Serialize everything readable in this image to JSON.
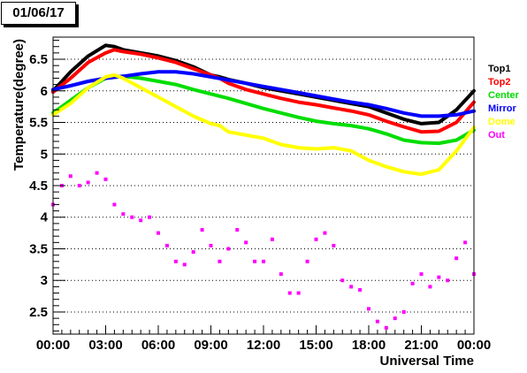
{
  "page": {
    "background": "#ffffff"
  },
  "title": "01/06/17",
  "chart_data": {
    "type": "scatter",
    "title": "01/06/17",
    "xlabel": "Universal Time",
    "ylabel": "Temperature(degree)",
    "xlim": [
      0,
      24
    ],
    "ylim": [
      2.15,
      6.85
    ],
    "grid": true,
    "legend_position": "right",
    "x_ticks": [
      {
        "value": 0,
        "label": "00:00"
      },
      {
        "value": 3,
        "label": "03:00"
      },
      {
        "value": 6,
        "label": "06:00"
      },
      {
        "value": 9,
        "label": "09:00"
      },
      {
        "value": 12,
        "label": "12:00"
      },
      {
        "value": 15,
        "label": "15:00"
      },
      {
        "value": 18,
        "label": "18:00"
      },
      {
        "value": 21,
        "label": "21:00"
      },
      {
        "value": 24,
        "label": "00:00"
      }
    ],
    "y_ticks": [
      {
        "value": 2.5,
        "label": "2.5"
      },
      {
        "value": 3,
        "label": "3"
      },
      {
        "value": 3.5,
        "label": "3.5"
      },
      {
        "value": 4,
        "label": "4"
      },
      {
        "value": 4.5,
        "label": "4.5"
      },
      {
        "value": 5,
        "label": "5"
      },
      {
        "value": 5.5,
        "label": "5.5"
      },
      {
        "value": 6,
        "label": "6"
      },
      {
        "value": 6.5,
        "label": "6.5"
      }
    ],
    "series": [
      {
        "name": "Top1",
        "color": "#000000",
        "x": [
          0,
          1,
          2,
          3,
          3.5,
          4,
          5,
          6,
          7,
          8,
          9,
          9.5,
          10,
          11,
          12,
          13,
          14,
          15,
          16,
          17,
          18,
          19,
          20,
          21,
          22,
          23,
          24
        ],
        "y": [
          6.0,
          6.3,
          6.55,
          6.72,
          6.7,
          6.65,
          6.6,
          6.55,
          6.48,
          6.38,
          6.25,
          6.22,
          6.18,
          6.12,
          6.05,
          6.0,
          5.95,
          5.9,
          5.85,
          5.8,
          5.75,
          5.65,
          5.55,
          5.48,
          5.5,
          5.7,
          6.0
        ]
      },
      {
        "name": "Top2",
        "color": "#ff0000",
        "x": [
          0,
          1,
          2,
          3,
          3.5,
          4,
          5,
          6,
          7,
          8,
          9,
          9.5,
          10,
          11,
          12,
          13,
          14,
          15,
          16,
          17,
          18,
          19,
          20,
          21,
          22,
          23,
          24
        ],
        "y": [
          5.98,
          6.2,
          6.45,
          6.6,
          6.65,
          6.62,
          6.58,
          6.52,
          6.45,
          6.35,
          6.25,
          6.2,
          6.12,
          6.02,
          5.95,
          5.88,
          5.82,
          5.78,
          5.73,
          5.68,
          5.62,
          5.52,
          5.43,
          5.35,
          5.36,
          5.5,
          5.82
        ]
      },
      {
        "name": "Center",
        "color": "#00dd00",
        "x": [
          0,
          1,
          2,
          3,
          4,
          5,
          6,
          7,
          8,
          9,
          10,
          11,
          12,
          13,
          14,
          15,
          16,
          17,
          18,
          19,
          20,
          21,
          22,
          23,
          24
        ],
        "y": [
          5.65,
          5.85,
          6.05,
          6.2,
          6.23,
          6.2,
          6.15,
          6.1,
          6.02,
          5.95,
          5.88,
          5.8,
          5.72,
          5.65,
          5.58,
          5.52,
          5.48,
          5.45,
          5.4,
          5.32,
          5.22,
          5.18,
          5.17,
          5.22,
          5.38
        ]
      },
      {
        "name": "Mirror",
        "color": "#0000ff",
        "x": [
          0,
          1,
          2,
          3,
          4,
          5,
          6,
          7,
          8,
          9,
          10,
          11,
          12,
          13,
          14,
          15,
          16,
          17,
          18,
          19,
          20,
          21,
          22,
          23,
          24
        ],
        "y": [
          6.02,
          6.08,
          6.15,
          6.2,
          6.23,
          6.27,
          6.3,
          6.3,
          6.27,
          6.22,
          6.17,
          6.12,
          6.07,
          6.02,
          5.97,
          5.92,
          5.87,
          5.82,
          5.78,
          5.72,
          5.65,
          5.6,
          5.6,
          5.62,
          5.68
        ]
      },
      {
        "name": "Dome",
        "color": "#ffff00",
        "x": [
          0,
          1,
          2,
          3,
          3.5,
          4,
          5,
          6,
          7,
          8,
          9,
          9.5,
          10,
          11,
          12,
          13,
          14,
          15,
          16,
          17,
          18,
          19,
          20,
          21,
          22,
          23,
          24
        ],
        "y": [
          5.62,
          5.8,
          6.05,
          6.22,
          6.25,
          6.2,
          6.05,
          5.9,
          5.75,
          5.6,
          5.48,
          5.45,
          5.35,
          5.3,
          5.25,
          5.15,
          5.1,
          5.08,
          5.1,
          5.05,
          4.9,
          4.8,
          4.72,
          4.68,
          4.75,
          5.05,
          5.42
        ]
      },
      {
        "name": "Out",
        "color": "#ff00ff",
        "x": [
          0,
          0.5,
          1,
          1.5,
          2,
          2.5,
          3,
          3.5,
          4,
          4.5,
          5,
          5.5,
          6,
          6.5,
          7,
          7.5,
          8,
          8.5,
          9,
          9.5,
          10,
          10.5,
          11,
          11.5,
          12,
          12.5,
          13,
          13.5,
          14,
          14.5,
          15,
          15.5,
          16,
          16.5,
          17,
          17.5,
          18,
          18.5,
          19,
          19.5,
          20,
          20.5,
          21,
          21.5,
          22,
          22.5,
          23,
          23.5,
          24
        ],
        "y": [
          4.2,
          4.5,
          4.65,
          4.5,
          4.55,
          4.7,
          4.6,
          4.2,
          4.05,
          4.0,
          3.95,
          4.0,
          3.75,
          3.55,
          3.3,
          3.25,
          3.45,
          3.8,
          3.55,
          3.3,
          3.5,
          3.8,
          3.6,
          3.3,
          3.3,
          3.65,
          3.1,
          2.8,
          2.8,
          3.3,
          3.65,
          3.75,
          3.55,
          3.0,
          2.9,
          2.85,
          2.55,
          2.35,
          2.25,
          2.4,
          2.5,
          2.95,
          3.1,
          2.9,
          3.05,
          3.0,
          3.35,
          3.6,
          3.1
        ]
      }
    ]
  }
}
